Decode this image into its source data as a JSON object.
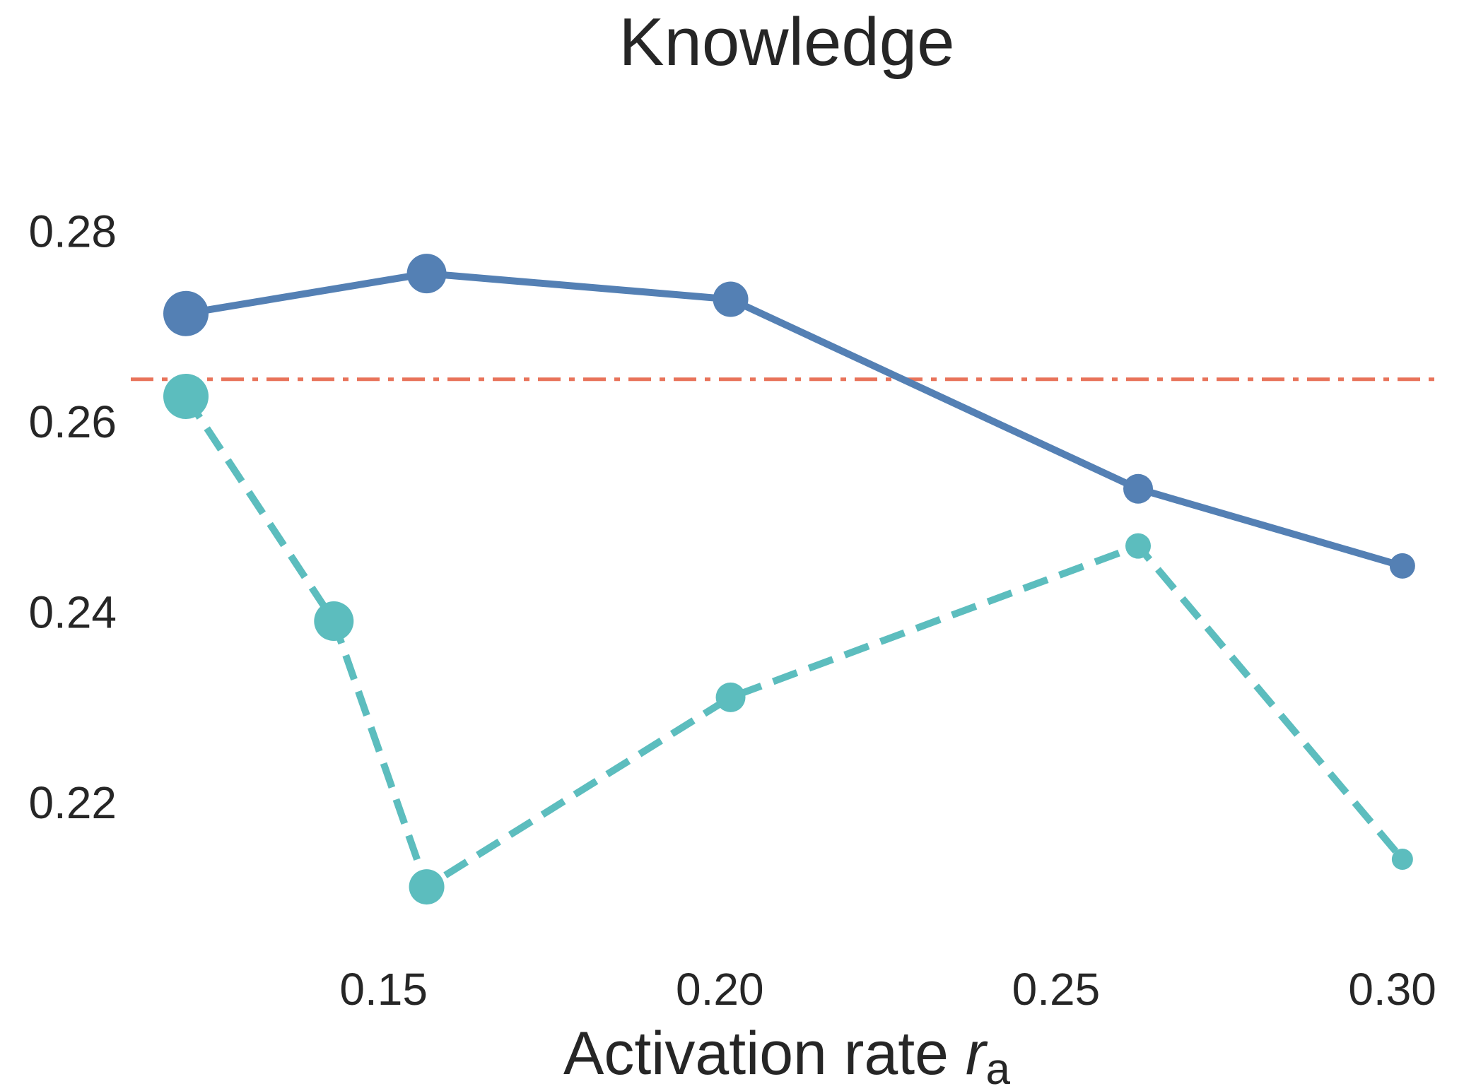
{
  "chart_data": {
    "type": "line",
    "title": "Knowledge",
    "xlabel": "Activation rate",
    "xlabel_symbol": "r",
    "xlabel_subscript": "a",
    "ylabel": "",
    "xlim": [
      0.1124,
      0.3074
    ],
    "ylim": [
      0.2048,
      0.2879
    ],
    "xticks": [
      0.15,
      0.2,
      0.25,
      0.3
    ],
    "xtick_labels": [
      "0.15",
      "0.20",
      "0.25",
      "0.30"
    ],
    "yticks": [
      0.22,
      0.24,
      0.26,
      0.28
    ],
    "ytick_labels": [
      "0.22",
      "0.24",
      "0.26",
      "0.28"
    ],
    "grid": false,
    "series": [
      {
        "line_style": "solid",
        "color": "#5480b4",
        "points": [
          {
            "x": 0.1206,
            "y": 0.2713,
            "size": 64
          },
          {
            "x": 0.1564,
            "y": 0.2755,
            "size": 56
          },
          {
            "x": 0.2016,
            "y": 0.2728,
            "size": 50
          },
          {
            "x": 0.2622,
            "y": 0.2529,
            "size": 42
          },
          {
            "x": 0.3015,
            "y": 0.2448,
            "size": 36
          }
        ]
      },
      {
        "line_style": "dashed",
        "color": "#5cbdbe",
        "points": [
          {
            "x": 0.1206,
            "y": 0.2626,
            "size": 64
          },
          {
            "x": 0.1426,
            "y": 0.239,
            "size": 56
          },
          {
            "x": 0.1564,
            "y": 0.2111,
            "size": 50
          },
          {
            "x": 0.2016,
            "y": 0.231,
            "size": 42
          },
          {
            "x": 0.2622,
            "y": 0.2469,
            "size": 36
          },
          {
            "x": 0.3015,
            "y": 0.214,
            "size": 30
          }
        ]
      }
    ],
    "reference_lines": [
      {
        "orientation": "horizontal",
        "y": 0.2644,
        "line_style": "dashdot",
        "color": "#e8735a"
      }
    ]
  }
}
